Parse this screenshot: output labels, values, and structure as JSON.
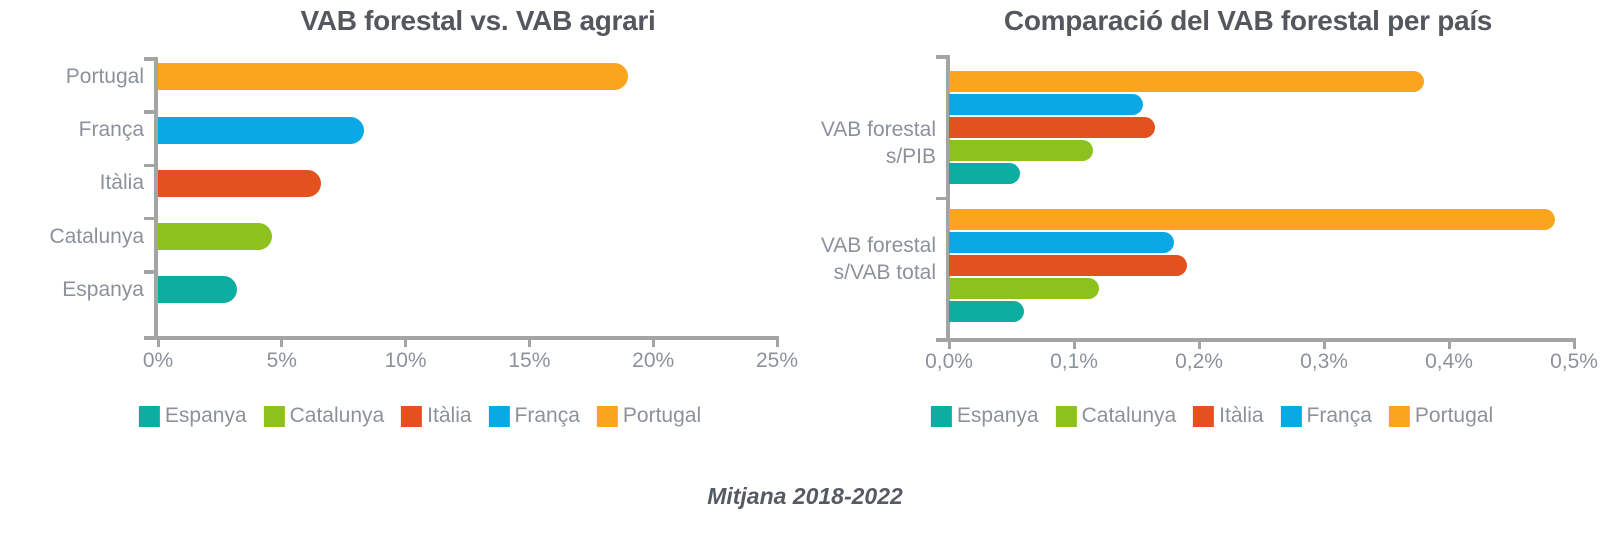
{
  "caption": "Mitjana 2018-2022",
  "palette": {
    "Espanya": "#0CAEA2",
    "Catalunya": "#8DC21E",
    "Itàlia": "#E2511E",
    "França": "#0AA9E5",
    "Portugal": "#FAA51D"
  },
  "style_colors": {
    "title": "#54575D",
    "labels": "#8C929B",
    "axis": "#A4A4A4",
    "caption": "#565B63"
  },
  "chart_data": [
    {
      "type": "bar",
      "orientation": "horizontal",
      "title": "VAB forestal vs. VAB agrari",
      "categories": [
        "Portugal",
        "França",
        "Itàlia",
        "Catalunya",
        "Espanya"
      ],
      "values": [
        19.0,
        8.3,
        6.6,
        4.6,
        3.2
      ],
      "value_unit": "%",
      "xlim": [
        0,
        25
      ],
      "xtick_values": [
        0,
        5,
        10,
        15,
        20,
        25
      ],
      "xtick_labels": [
        "0%",
        "5%",
        "10%",
        "15%",
        "20%",
        "25%"
      ],
      "grid": false,
      "legend_position": "bottom",
      "legend": [
        "Espanya",
        "Catalunya",
        "Itàlia",
        "França",
        "Portugal"
      ]
    },
    {
      "type": "bar",
      "orientation": "horizontal",
      "title": "Comparació del VAB forestal per país",
      "categories": [
        "VAB forestal s/PIB",
        "VAB forestal s/VAB total"
      ],
      "category_label_lines": [
        [
          "VAB forestal",
          "s/PIB"
        ],
        [
          "VAB forestal",
          "s/VAB total"
        ]
      ],
      "series": [
        {
          "name": "Portugal",
          "values": [
            0.38,
            0.485
          ]
        },
        {
          "name": "França",
          "values": [
            0.155,
            0.18
          ]
        },
        {
          "name": "Itàlia",
          "values": [
            0.165,
            0.19
          ]
        },
        {
          "name": "Catalunya",
          "values": [
            0.115,
            0.12
          ]
        },
        {
          "name": "Espanya",
          "values": [
            0.057,
            0.06
          ]
        }
      ],
      "value_unit": "%",
      "xlim": [
        0,
        0.5
      ],
      "xtick_values": [
        0,
        0.1,
        0.2,
        0.3,
        0.4,
        0.5
      ],
      "xtick_labels": [
        "0,0%",
        "0,1%",
        "0,2%",
        "0,3%",
        "0,4%",
        "0,5%"
      ],
      "grid": false,
      "legend_position": "bottom",
      "legend": [
        "Espanya",
        "Catalunya",
        "Itàlia",
        "França",
        "Portugal"
      ]
    }
  ]
}
